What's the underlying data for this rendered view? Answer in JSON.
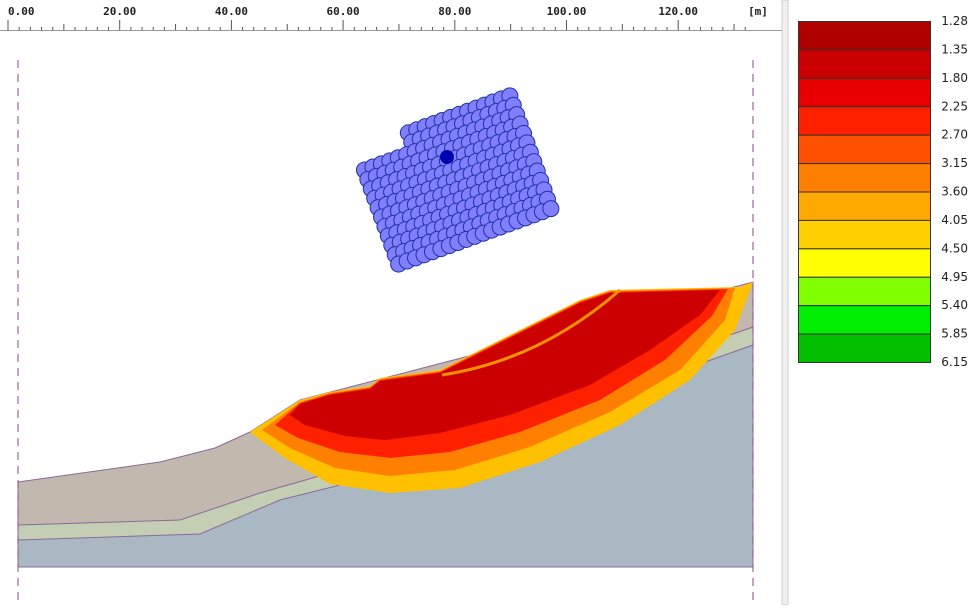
{
  "ruler": {
    "labels": [
      "0.00",
      "20.00",
      "40.00",
      "60.00",
      "80.00",
      "100.00",
      "120.00"
    ],
    "unit": "[m]"
  },
  "legend": {
    "labels": [
      "1.28",
      "1.35",
      "1.80",
      "2.25",
      "2.70",
      "3.15",
      "3.60",
      "4.05",
      "4.50",
      "4.95",
      "5.40",
      "5.85",
      "6.15"
    ],
    "colors": [
      "#b00000",
      "#cc0000",
      "#e80000",
      "#ff2000",
      "#ff5000",
      "#ff8000",
      "#ffa800",
      "#ffd000",
      "#ffff00",
      "#80ff00",
      "#00ee00",
      "#00c000"
    ]
  }
}
